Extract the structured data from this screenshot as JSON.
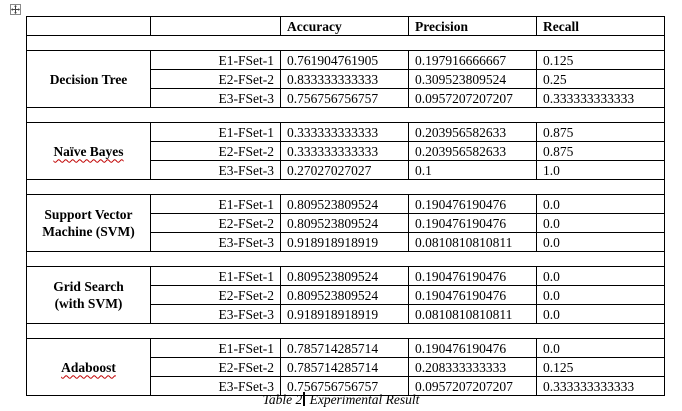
{
  "table": {
    "headers": [
      "",
      "",
      "Accuracy",
      "Precision",
      "Recall"
    ],
    "groups": [
      {
        "method_lines": [
          "Decision Tree"
        ],
        "misspelled": false,
        "rows": [
          {
            "fset": "E1-FSet-1",
            "accuracy": "0.761904761905",
            "precision": "0.197916666667",
            "recall": "0.125"
          },
          {
            "fset": "E2-FSet-2",
            "accuracy": "0.833333333333",
            "precision": "0.309523809524",
            "recall": "0.25"
          },
          {
            "fset": "E3-FSet-3",
            "accuracy": "0.756756756757",
            "precision": "0.0957207207207",
            "recall": "0.333333333333"
          }
        ]
      },
      {
        "method_lines": [
          "Naïve Bayes"
        ],
        "misspelled": true,
        "rows": [
          {
            "fset": "E1-FSet-1",
            "accuracy": "0.333333333333",
            "precision": "0.203956582633",
            "recall": "0.875"
          },
          {
            "fset": "E2-FSet-2",
            "accuracy": "0.333333333333",
            "precision": "0.203956582633",
            "recall": "0.875"
          },
          {
            "fset": "E3-FSet-3",
            "accuracy": "0.27027027027",
            "precision": "0.1",
            "recall": "1.0"
          }
        ]
      },
      {
        "method_lines": [
          "Support Vector",
          "Machine (SVM)"
        ],
        "misspelled": false,
        "rows": [
          {
            "fset": "E1-FSet-1",
            "accuracy": "0.809523809524",
            "precision": "0.190476190476",
            "recall": "0.0"
          },
          {
            "fset": "E2-FSet-2",
            "accuracy": "0.809523809524",
            "precision": "0.190476190476",
            "recall": "0.0"
          },
          {
            "fset": "E3-FSet-3",
            "accuracy": "0.918918918919",
            "precision": "0.0810810810811",
            "recall": "0.0"
          }
        ]
      },
      {
        "method_lines": [
          "Grid Search",
          "(with SVM)"
        ],
        "misspelled": false,
        "rows": [
          {
            "fset": "E1-FSet-1",
            "accuracy": "0.809523809524",
            "precision": "0.190476190476",
            "recall": "0.0"
          },
          {
            "fset": "E2-FSet-2",
            "accuracy": "0.809523809524",
            "precision": "0.190476190476",
            "recall": "0.0"
          },
          {
            "fset": "E3-FSet-3",
            "accuracy": "0.918918918919",
            "precision": "0.0810810810811",
            "recall": "0.0"
          }
        ]
      },
      {
        "method_lines": [
          "Adaboost"
        ],
        "misspelled": true,
        "rows": [
          {
            "fset": "E1-FSet-1",
            "accuracy": "0.785714285714",
            "precision": "0.190476190476",
            "recall": "0.0"
          },
          {
            "fset": "E2-FSet-2",
            "accuracy": "0.785714285714",
            "precision": "0.208333333333",
            "recall": "0.125"
          },
          {
            "fset": "E3-FSet-3",
            "accuracy": "0.756756756757",
            "precision": "0.0957207207207",
            "recall": "0.333333333333"
          }
        ]
      }
    ]
  },
  "caption": {
    "before_caret": "Table 2",
    "after_caret": " Experimental Result"
  },
  "icons": {
    "table_anchor": "move-handle-icon"
  }
}
